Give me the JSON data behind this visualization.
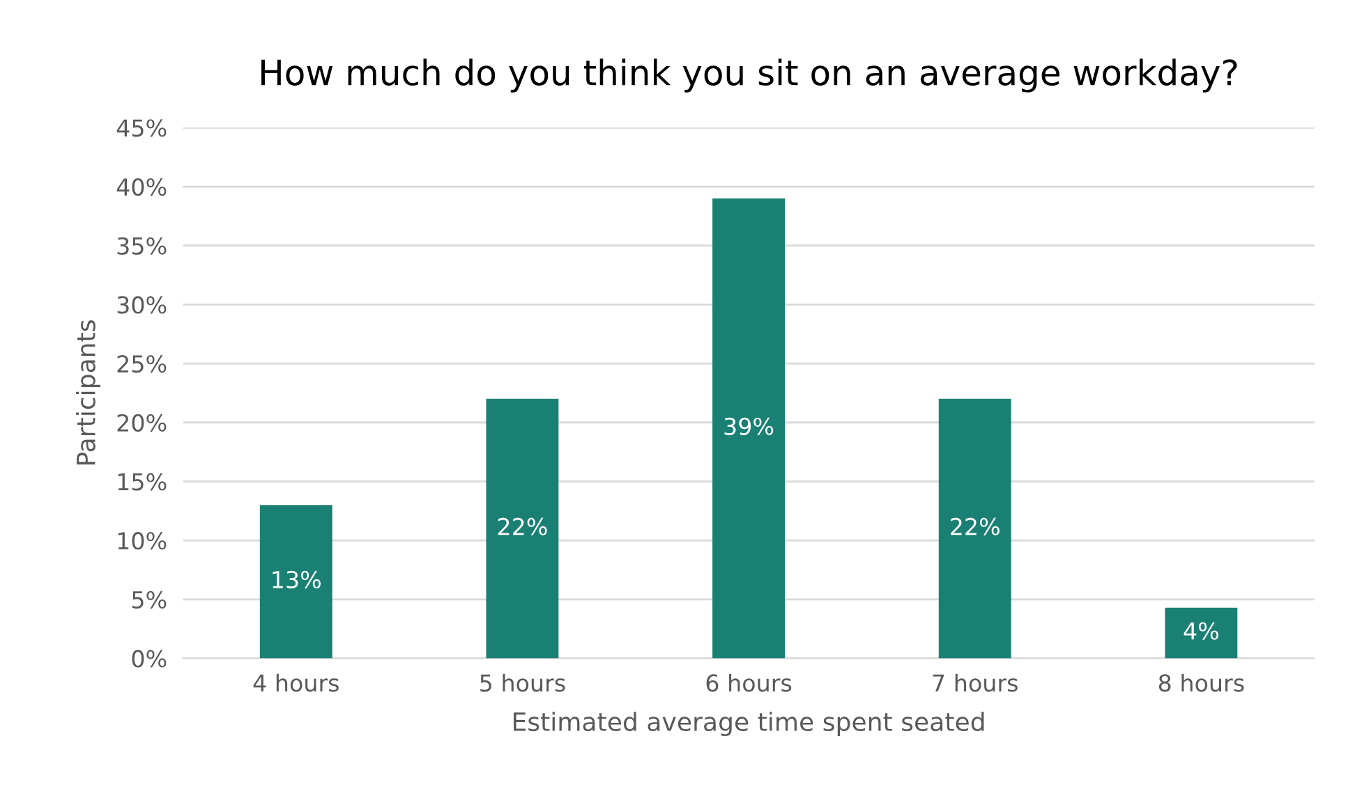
{
  "chart_data": {
    "type": "bar",
    "title": "How much do you think you sit on an average workday?",
    "xlabel": "Estimated average time spent seated",
    "ylabel": "Participants",
    "categories": [
      "4 hours",
      "5 hours",
      "6 hours",
      "7 hours",
      "8 hours"
    ],
    "values": [
      13,
      22,
      39,
      22,
      4.3
    ],
    "value_labels": [
      "13%",
      "22%",
      "39%",
      "22%",
      "4%"
    ],
    "color": "#1a8073",
    "ylim": [
      0,
      45
    ],
    "yticks": [
      {
        "value": 0,
        "label": "0%"
      },
      {
        "value": 5,
        "label": "5%"
      },
      {
        "value": 10,
        "label": "10%"
      },
      {
        "value": 15,
        "label": "15%"
      },
      {
        "value": 20,
        "label": "20%"
      },
      {
        "value": 25,
        "label": "25%"
      },
      {
        "value": 30,
        "label": "30%"
      },
      {
        "value": 35,
        "label": "35%"
      },
      {
        "value": 40,
        "label": "40%"
      },
      {
        "value": 45,
        "label": "45%"
      }
    ],
    "grid": "y"
  }
}
